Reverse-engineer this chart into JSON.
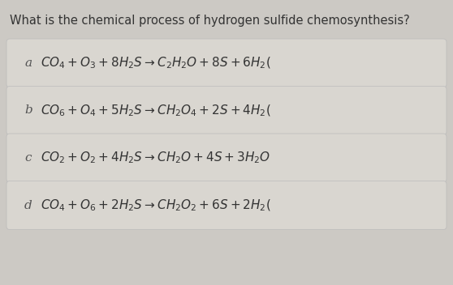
{
  "title": "What is the chemical process of hydrogen sulfide chemosynthesis?",
  "title_fontsize": 10.5,
  "bg_color": "#ccc9c4",
  "card_color": "#d9d6d0",
  "text_color": "#333333",
  "label_color": "#555555",
  "options": [
    {
      "label": "a",
      "formula": "$CO_4 + O_3 + 8H_2S \\rightarrow C_2H_2O + 8S + 6H_2($"
    },
    {
      "label": "b",
      "formula": "$CO_6 + O_4 + 5H_2S \\rightarrow CH_2O_4 + 2S + 4H_2($"
    },
    {
      "label": "c",
      "formula": "$CO_2 + O_2 + 4H_2S \\rightarrow CH_2O + 4S + 3H_2O$"
    },
    {
      "label": "d",
      "formula": "$CO_4 + O_6 + 2H_2S \\rightarrow CH_2O_2 + 6S + 2H_2($"
    }
  ],
  "fig_width": 5.58,
  "fig_height": 3.52,
  "dpi": 100
}
